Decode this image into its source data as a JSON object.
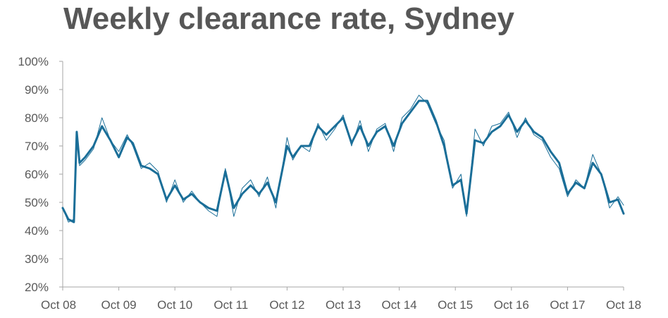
{
  "chart_data": {
    "type": "line",
    "title": "Weekly clearance rate, Sydney",
    "xlabel": "",
    "ylabel": "",
    "x_tick_labels": [
      "Oct 08",
      "Oct 09",
      "Oct 10",
      "Oct 11",
      "Oct 12",
      "Oct 13",
      "Oct 14",
      "Oct 15",
      "Oct 16",
      "Oct 17",
      "Oct 18"
    ],
    "y_tick_labels": [
      "20%",
      "30%",
      "40%",
      "50%",
      "60%",
      "70%",
      "80%",
      "90%",
      "100%"
    ],
    "xlim": [
      "2008-10",
      "2018-10"
    ],
    "ylim": [
      20,
      100
    ],
    "y_unit": "%",
    "grid": false,
    "legend": "none",
    "series": [
      {
        "style": "thin",
        "color": "#1a6e98",
        "x": [
          2008.75,
          2008.85,
          2008.95,
          2009.0,
          2009.05,
          2009.15,
          2009.3,
          2009.45,
          2009.6,
          2009.75,
          2009.9,
          2010.0,
          2010.15,
          2010.3,
          2010.45,
          2010.6,
          2010.75,
          2010.9,
          2011.05,
          2011.2,
          2011.35,
          2011.5,
          2011.65,
          2011.8,
          2011.95,
          2012.1,
          2012.25,
          2012.4,
          2012.55,
          2012.75,
          2012.85,
          2013.0,
          2013.15,
          2013.3,
          2013.45,
          2013.6,
          2013.75,
          2013.9,
          2014.05,
          2014.2,
          2014.35,
          2014.5,
          2014.65,
          2014.8,
          2014.95,
          2015.1,
          2015.25,
          2015.4,
          2015.55,
          2015.7,
          2015.85,
          2015.95,
          2016.1,
          2016.25,
          2016.4,
          2016.55,
          2016.7,
          2016.85,
          2017.0,
          2017.15,
          2017.3,
          2017.45,
          2017.6,
          2017.75,
          2017.9,
          2018.05,
          2018.2,
          2018.35,
          2018.5,
          2018.65,
          2018.75
        ],
        "y": [
          48,
          43,
          44,
          75,
          63,
          65,
          69,
          80,
          72,
          68,
          74,
          70,
          62,
          64,
          61,
          50,
          58,
          50,
          54,
          50,
          47,
          45,
          62,
          45,
          55,
          58,
          52,
          59,
          48,
          73,
          65,
          70,
          68,
          78,
          72,
          76,
          81,
          70,
          79,
          68,
          76,
          78,
          68,
          80,
          83,
          88,
          85,
          78,
          72,
          55,
          60,
          45,
          76,
          70,
          77,
          78,
          82,
          73,
          80,
          74,
          72,
          66,
          62,
          52,
          58,
          55,
          67,
          60,
          48,
          52,
          49
        ]
      },
      {
        "style": "thick",
        "color": "#1a6e98",
        "x": [
          2008.75,
          2008.85,
          2008.95,
          2009.0,
          2009.05,
          2009.15,
          2009.3,
          2009.45,
          2009.6,
          2009.75,
          2009.9,
          2010.0,
          2010.15,
          2010.3,
          2010.45,
          2010.6,
          2010.75,
          2010.9,
          2011.05,
          2011.2,
          2011.35,
          2011.5,
          2011.65,
          2011.8,
          2011.95,
          2012.1,
          2012.25,
          2012.4,
          2012.55,
          2012.75,
          2012.85,
          2013.0,
          2013.15,
          2013.3,
          2013.45,
          2013.6,
          2013.75,
          2013.9,
          2014.05,
          2014.2,
          2014.35,
          2014.5,
          2014.65,
          2014.8,
          2014.95,
          2015.1,
          2015.25,
          2015.4,
          2015.55,
          2015.7,
          2015.85,
          2015.95,
          2016.1,
          2016.25,
          2016.4,
          2016.55,
          2016.7,
          2016.85,
          2017.0,
          2017.15,
          2017.3,
          2017.45,
          2017.6,
          2017.75,
          2017.9,
          2018.05,
          2018.2,
          2018.35,
          2018.5,
          2018.65,
          2018.75
        ],
        "y": [
          48,
          44,
          43,
          75,
          64,
          66,
          70,
          77,
          72,
          66,
          73,
          71,
          63,
          62,
          60,
          51,
          56,
          51,
          53,
          50,
          48,
          47,
          61,
          48,
          53,
          56,
          53,
          57,
          50,
          70,
          66,
          70,
          70,
          77,
          74,
          77,
          80,
          71,
          77,
          70,
          75,
          77,
          70,
          78,
          82,
          86,
          86,
          79,
          70,
          56,
          58,
          46,
          72,
          71,
          75,
          77,
          81,
          75,
          79,
          75,
          73,
          68,
          64,
          53,
          57,
          55,
          64,
          60,
          50,
          51,
          46
        ]
      }
    ]
  }
}
